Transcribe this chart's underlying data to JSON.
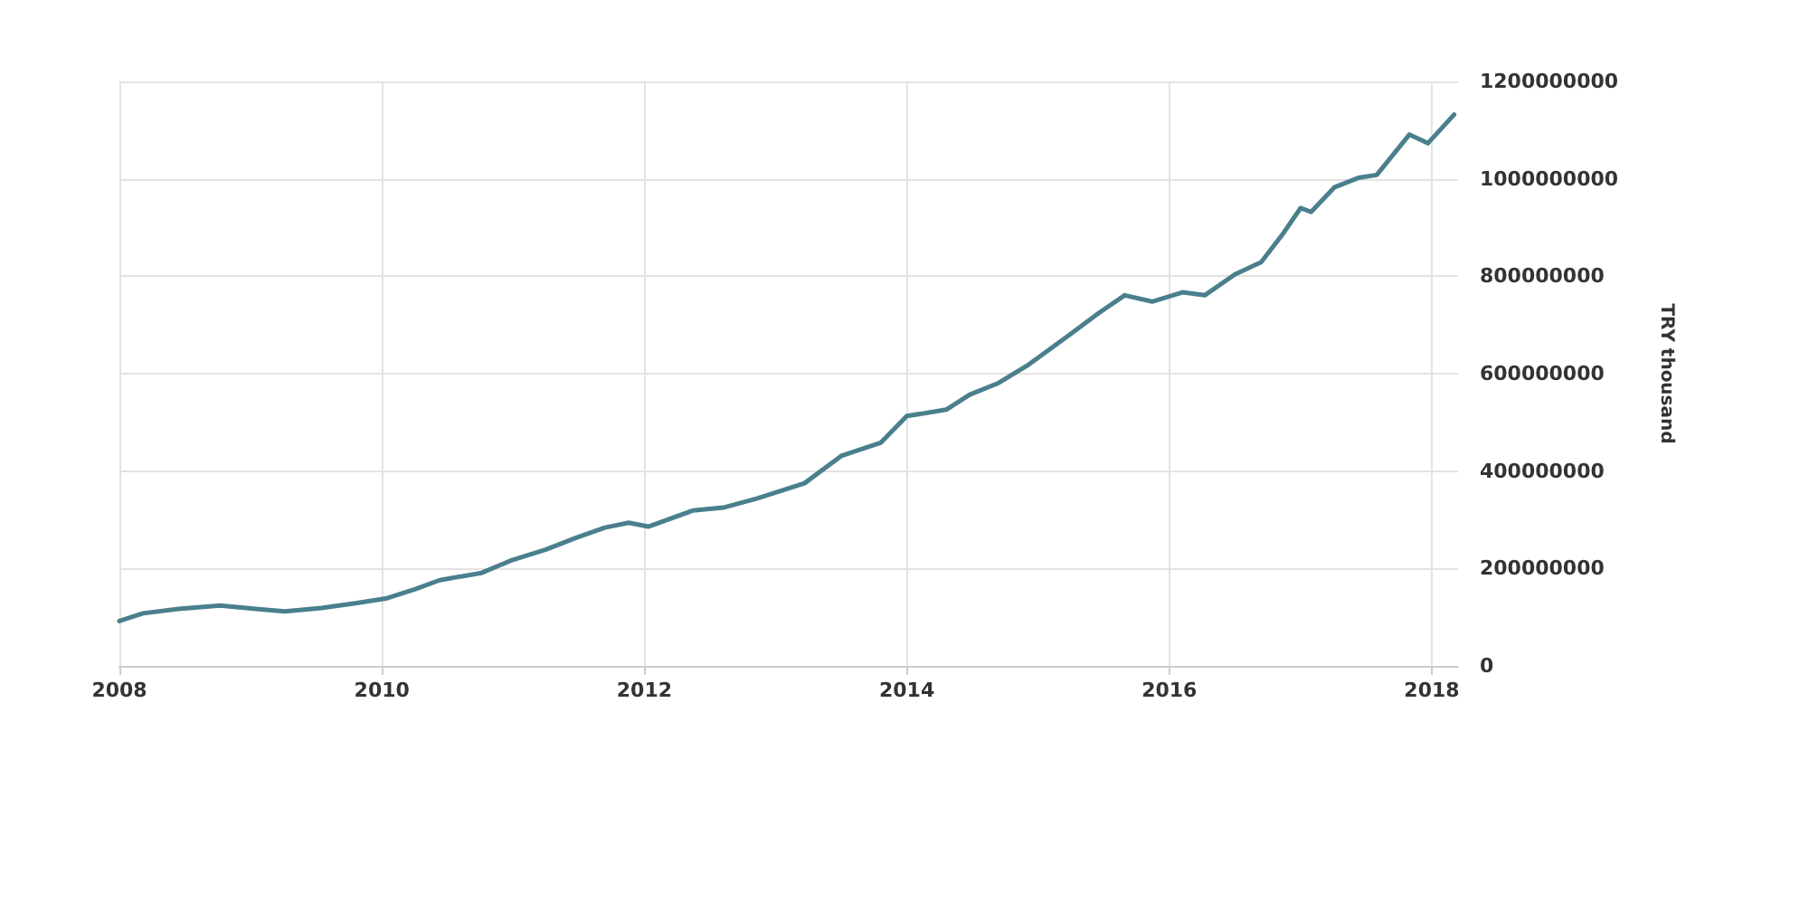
{
  "chart_data": {
    "type": "line",
    "ylabel": "TRY thousand",
    "x": [
      2008.0,
      2008.18,
      2008.45,
      2008.77,
      2009.04,
      2009.26,
      2009.54,
      2009.81,
      2010.04,
      2010.26,
      2010.44,
      2010.76,
      2010.98,
      2011.25,
      2011.48,
      2011.7,
      2011.88,
      2012.03,
      2012.37,
      2012.6,
      2012.86,
      2013.22,
      2013.5,
      2013.8,
      2014.0,
      2014.3,
      2014.48,
      2014.7,
      2014.93,
      2015.24,
      2015.46,
      2015.66,
      2015.87,
      2016.1,
      2016.27,
      2016.5,
      2016.7,
      2016.86,
      2017.0,
      2017.08,
      2017.26,
      2017.44,
      2017.58,
      2017.83,
      2017.97,
      2018.17
    ],
    "series": [
      {
        "color": "#4a7f8c",
        "values": [
          92000000,
          108000000,
          117000000,
          124000000,
          117000000,
          112000000,
          119000000,
          129000000,
          139000000,
          158000000,
          176000000,
          191000000,
          216000000,
          239000000,
          263000000,
          284000000,
          294000000,
          286000000,
          319000000,
          325000000,
          344000000,
          375000000,
          431000000,
          458000000,
          513000000,
          526000000,
          557000000,
          581000000,
          619000000,
          680000000,
          724000000,
          761000000,
          748000000,
          767000000,
          761000000,
          804000000,
          829000000,
          885000000,
          940000000,
          932000000,
          983000000,
          1002000000,
          1008000000,
          1091000000,
          1073000000,
          1132000000
        ]
      }
    ],
    "xlim": [
      2008,
      2018.2
    ],
    "xticks": [
      2008,
      2010,
      2012,
      2014,
      2016,
      2018
    ],
    "ylim": [
      0,
      1200000000
    ],
    "yticks": [
      0,
      200000000,
      400000000,
      600000000,
      800000000,
      1000000000,
      1200000000
    ],
    "grid": true,
    "marker": "none",
    "line_style": "solid"
  }
}
